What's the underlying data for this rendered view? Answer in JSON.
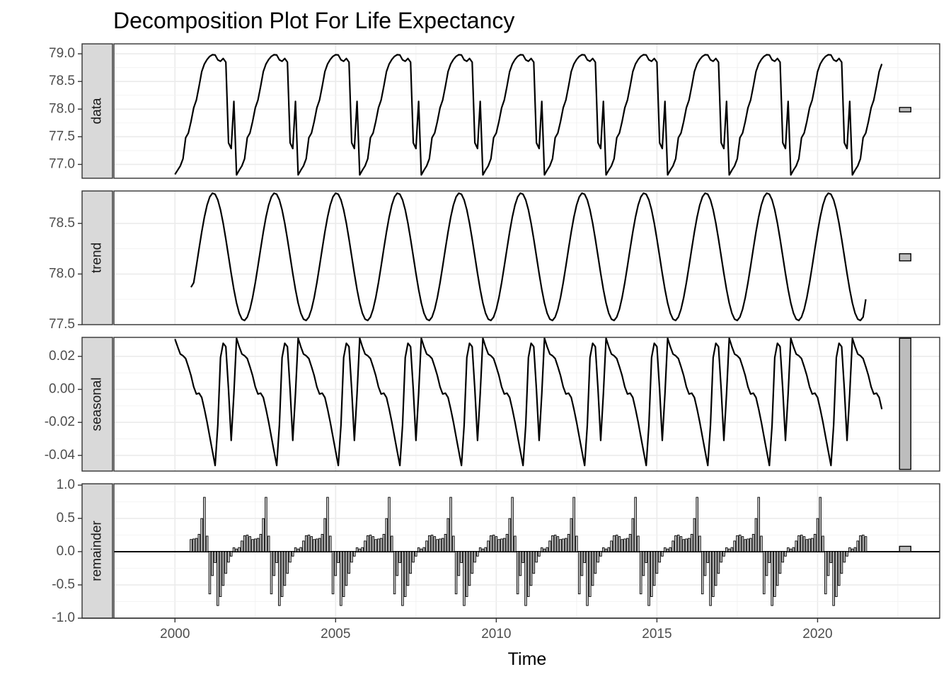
{
  "chart_data": {
    "type": "line",
    "title": "Decomposition Plot For Life Expectancy",
    "xlabel": "Time",
    "xlim": [
      1998.1,
      2023.8
    ],
    "x_ticks": [
      2000,
      2005,
      2010,
      2015,
      2020
    ],
    "x_tick_labels": [
      "2000",
      "2005",
      "2010",
      "2015",
      "2020"
    ],
    "series_color": "#000000",
    "strip_fill": "#d9d9d9",
    "range_bar_fill": "#bdbdbd",
    "grid": true,
    "period_years": 1.9166667,
    "panels": [
      {
        "name": "data",
        "ylim": [
          76.75,
          79.18
        ],
        "ticks": [
          77.0,
          77.5,
          78.0,
          78.5,
          79.0
        ],
        "tick_labels": [
          "77.0",
          "77.5",
          "78.0",
          "78.5",
          "79.0"
        ],
        "mark": "line",
        "start": 2000.0,
        "end": 2022.0,
        "cycle": [
          76.82,
          76.9,
          76.98,
          77.12,
          77.56,
          77.57,
          77.85,
          78.1,
          78.2,
          78.55,
          78.78,
          78.85,
          78.95,
          78.96,
          79.02,
          78.9,
          78.87,
          78.85,
          79.15,
          77.42,
          77.2,
          78.2,
          76.81
        ],
        "range_bar": [
          77.95,
          78.03
        ]
      },
      {
        "name": "trend",
        "ylim": [
          77.5,
          78.82
        ],
        "ticks": [
          77.5,
          78.0,
          78.5
        ],
        "tick_labels": [
          "77.5",
          "78.0",
          "78.5"
        ],
        "mark": "line",
        "start": 2000.5,
        "end": 2021.5,
        "first_value": 77.87,
        "last_value": 77.75,
        "min": 77.54,
        "max": 78.8,
        "range_bar": [
          78.13,
          78.2
        ]
      },
      {
        "name": "seasonal",
        "ylim": [
          -0.0495,
          0.0315
        ],
        "ticks": [
          0.02,
          0.0,
          -0.02,
          -0.04
        ],
        "tick_labels": [
          "0.02",
          "0.00",
          "-0.02",
          "-0.04"
        ],
        "mark": "line",
        "start": 2000.0,
        "end": 2022.0,
        "cycle": [
          0.0305,
          0.0215,
          0.0195,
          0.01,
          -0.003,
          -0.002,
          -0.0155,
          -0.0325,
          -0.049,
          0.0295,
          0.0255,
          -0.0335,
          0.031
        ],
        "range_bar": [
          -0.0485,
          0.031
        ]
      },
      {
        "name": "remainder",
        "ylim": [
          -1.0,
          1.02
        ],
        "ticks": [
          1.0,
          0.5,
          0.0,
          -0.5,
          -1.0
        ],
        "tick_labels": [
          "1.0",
          "0.5",
          "0.0",
          "-0.5",
          "-1.0"
        ],
        "mark": "bar",
        "start": 2000.5,
        "end": 2021.5,
        "cycle": [
          0.1,
          0.06,
          0.17,
          0.25,
          0.25,
          0.22,
          0.17,
          0.2,
          0.2,
          0.3,
          0.65,
          0.97,
          -0.57,
          -0.72,
          0.2,
          -0.85,
          -0.72,
          -0.55,
          -0.36,
          -0.17,
          -0.08,
          0.06,
          0.04
        ],
        "range_bar": [
          0.0,
          0.08
        ]
      }
    ]
  }
}
